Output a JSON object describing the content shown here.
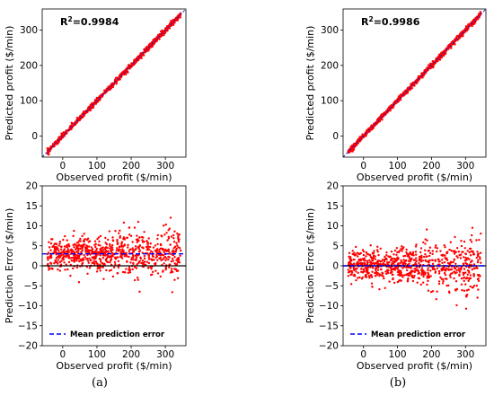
{
  "chart_data": [
    {
      "id": "a-top",
      "type": "scatter",
      "xlabel": "Observed profit ($/min)",
      "ylabel": "Predicted profit ($/min)",
      "xlim": [
        -60,
        360
      ],
      "ylim": [
        -60,
        360
      ],
      "xticks": [
        0,
        100,
        200,
        300
      ],
      "yticks": [
        0,
        100,
        200,
        300
      ],
      "annotation_label": "R",
      "annotation_value": "=0.9984",
      "point_color": "#ff0000",
      "reference_line": "y = x",
      "reference_line_color": "#2222cc"
    },
    {
      "id": "b-top",
      "type": "scatter",
      "xlabel": "Observed profit ($/min)",
      "ylabel": "Predicted profit ($/min)",
      "xlim": [
        -60,
        360
      ],
      "ylim": [
        -60,
        360
      ],
      "xticks": [
        0,
        100,
        200,
        300
      ],
      "yticks": [
        0,
        100,
        200,
        300
      ],
      "annotation_label": "R",
      "annotation_value": "=0.9986",
      "point_color": "#ff0000",
      "reference_line": "y = x",
      "reference_line_color": "#2222cc"
    },
    {
      "id": "a-bottom",
      "type": "scatter",
      "xlabel": "Observed profit ($/min)",
      "ylabel": "Prediction Error ($/min)",
      "xlim": [
        -60,
        360
      ],
      "ylim": [
        -20,
        20
      ],
      "xticks": [
        0,
        100,
        200,
        300
      ],
      "yticks": [
        -20,
        -15,
        -10,
        -5,
        0,
        5,
        10,
        15,
        20
      ],
      "mean_prediction_error": 3,
      "zero_line": 0,
      "legend": "Mean prediction error",
      "legend_position": "lower-left",
      "point_color": "#ff0000",
      "mean_line_color": "#0000ff"
    },
    {
      "id": "b-bottom",
      "type": "scatter",
      "xlabel": "Observed profit ($/min)",
      "ylabel": "Prediction Error ($/min)",
      "xlim": [
        -60,
        360
      ],
      "ylim": [
        -20,
        20
      ],
      "xticks": [
        0,
        100,
        200,
        300
      ],
      "yticks": [
        -20,
        -15,
        -10,
        -5,
        0,
        5,
        10,
        15,
        20
      ],
      "mean_prediction_error": 0,
      "zero_line": 0,
      "legend": "Mean prediction error",
      "legend_position": "lower-left",
      "point_color": "#ff0000",
      "mean_line_color": "#0000ff"
    }
  ],
  "captions": [
    "(a)",
    "(b)"
  ]
}
